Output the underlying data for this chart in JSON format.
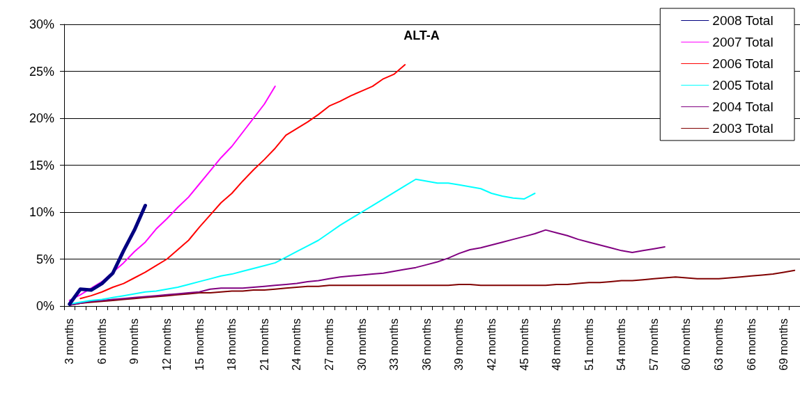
{
  "chart_data": {
    "type": "line",
    "title": "ALT-A",
    "categories": [
      "3 months",
      null,
      null,
      "6 months",
      null,
      null,
      "9 months",
      null,
      null,
      "12 months",
      null,
      null,
      "15 months",
      null,
      null,
      "18 months",
      null,
      null,
      "21 months",
      null,
      null,
      "24 months",
      null,
      null,
      "27 months",
      null,
      null,
      "30 months",
      null,
      null,
      "33 months",
      null,
      null,
      "36 months",
      null,
      null,
      "39 months",
      null,
      null,
      "42 months",
      null,
      null,
      "45 months",
      null,
      null,
      "48 months",
      null,
      null,
      "51 months",
      null,
      null,
      "54 months",
      null,
      null,
      "57 months",
      null,
      null,
      "60 months",
      null,
      null,
      "63 months",
      null,
      null,
      "66 months",
      null,
      null,
      "69 months",
      null
    ],
    "series": [
      {
        "name": "2008 Total",
        "color": "#000080",
        "values": [
          0.2,
          1.8,
          1.7,
          2.4,
          3.5,
          5.9,
          8.1,
          10.7,
          null,
          null,
          null,
          null,
          null,
          null,
          null,
          null,
          null,
          null,
          null,
          null,
          null,
          null,
          null,
          null,
          null,
          null,
          null,
          null,
          null,
          null,
          null,
          null,
          null,
          null,
          null,
          null,
          null,
          null,
          null,
          null,
          null,
          null,
          null,
          null,
          null,
          null,
          null,
          null,
          null,
          null,
          null,
          null,
          null,
          null,
          null,
          null,
          null,
          null,
          null,
          null,
          null,
          null,
          null,
          null,
          null,
          null,
          null,
          null
        ]
      },
      {
        "name": "2007 Total",
        "color": "#ff00ff",
        "values": [
          0.6,
          1.2,
          1.9,
          2.6,
          3.6,
          4.6,
          5.8,
          6.8,
          8.2,
          9.3,
          10.5,
          11.6,
          13.0,
          14.4,
          15.8,
          17.0,
          18.5,
          20.0,
          21.5,
          23.4,
          null,
          null,
          null,
          null,
          null,
          null,
          null,
          null,
          null,
          null,
          null,
          null,
          null,
          null,
          null,
          null,
          null,
          null,
          null,
          null,
          null,
          null,
          null,
          null,
          null,
          null,
          null,
          null,
          null,
          null,
          null,
          null,
          null,
          null,
          null,
          null,
          null,
          null,
          null,
          null,
          null,
          null,
          null,
          null,
          null,
          null,
          null,
          null
        ]
      },
      {
        "name": "2006 Total",
        "color": "#ff0000",
        "values": [
          null,
          0.8,
          1.1,
          1.5,
          2.0,
          2.4,
          3.0,
          3.6,
          4.3,
          5.0,
          6.0,
          7.0,
          8.4,
          9.7,
          11.0,
          12.0,
          13.3,
          14.5,
          15.6,
          16.8,
          18.2,
          18.9,
          19.6,
          20.4,
          21.3,
          21.8,
          22.4,
          22.9,
          23.4,
          24.2,
          24.7,
          25.7,
          null,
          null,
          null,
          null,
          null,
          null,
          null,
          null,
          null,
          null,
          null,
          null,
          null,
          null,
          null,
          null,
          null,
          null,
          null,
          null,
          null,
          null,
          null,
          null,
          null,
          null,
          null,
          null,
          null,
          null,
          null,
          null,
          null,
          null,
          null,
          null
        ]
      },
      {
        "name": "2005 Total",
        "color": "#00ffff",
        "values": [
          0.2,
          0.4,
          0.6,
          0.7,
          0.9,
          1.1,
          1.3,
          1.5,
          1.6,
          1.8,
          2.0,
          2.3,
          2.6,
          2.9,
          3.2,
          3.4,
          3.7,
          4.0,
          4.3,
          4.6,
          5.2,
          5.8,
          6.4,
          7.0,
          7.8,
          8.6,
          9.3,
          10.0,
          10.7,
          11.4,
          12.1,
          12.8,
          13.5,
          13.3,
          13.1,
          13.1,
          12.9,
          12.7,
          12.5,
          12.0,
          11.7,
          11.5,
          11.4,
          12.0,
          null,
          null,
          null,
          null,
          null,
          null,
          null,
          null,
          null,
          null,
          null,
          null,
          null,
          null,
          null,
          null,
          null,
          null,
          null,
          null,
          null,
          null,
          null,
          null
        ]
      },
      {
        "name": "2004 Total",
        "color": "#800080",
        "values": [
          0.1,
          0.3,
          0.5,
          0.6,
          0.7,
          0.8,
          0.9,
          1.0,
          1.1,
          1.2,
          1.3,
          1.4,
          1.5,
          1.8,
          1.9,
          1.9,
          1.9,
          2.0,
          2.1,
          2.2,
          2.3,
          2.4,
          2.6,
          2.7,
          2.9,
          3.1,
          3.2,
          3.3,
          3.4,
          3.5,
          3.7,
          3.9,
          4.1,
          4.4,
          4.7,
          5.1,
          5.6,
          6.0,
          6.2,
          6.5,
          6.8,
          7.1,
          7.4,
          7.7,
          8.1,
          7.8,
          7.5,
          7.1,
          6.8,
          6.5,
          6.2,
          5.9,
          5.7,
          5.9,
          6.1,
          6.3,
          null,
          null,
          null,
          null,
          null,
          null,
          null,
          null,
          null,
          null,
          null,
          null
        ]
      },
      {
        "name": "2003 Total",
        "color": "#800000",
        "values": [
          0.1,
          0.3,
          0.4,
          0.5,
          0.6,
          0.7,
          0.8,
          0.9,
          1.0,
          1.1,
          1.2,
          1.3,
          1.4,
          1.4,
          1.5,
          1.6,
          1.6,
          1.7,
          1.7,
          1.8,
          1.9,
          2.0,
          2.1,
          2.1,
          2.2,
          2.2,
          2.2,
          2.2,
          2.2,
          2.2,
          2.2,
          2.2,
          2.2,
          2.2,
          2.2,
          2.2,
          2.3,
          2.3,
          2.2,
          2.2,
          2.2,
          2.2,
          2.2,
          2.2,
          2.2,
          2.3,
          2.3,
          2.4,
          2.5,
          2.5,
          2.6,
          2.7,
          2.7,
          2.8,
          2.9,
          3.0,
          3.1,
          3.0,
          2.9,
          2.9,
          2.9,
          3.0,
          3.1,
          3.2,
          3.3,
          3.4,
          3.6,
          3.8
        ]
      }
    ],
    "ylim": [
      0,
      30
    ],
    "yticks": [
      {
        "value": 0,
        "label": "0%"
      },
      {
        "value": 5,
        "label": "5%"
      },
      {
        "value": 10,
        "label": "10%"
      },
      {
        "value": 15,
        "label": "15%"
      },
      {
        "value": 20,
        "label": "20%"
      },
      {
        "value": 25,
        "label": "25%"
      },
      {
        "value": 30,
        "label": "30%"
      }
    ],
    "grid": "y",
    "legend": "top right",
    "marker": "none",
    "line_style": "solid"
  }
}
